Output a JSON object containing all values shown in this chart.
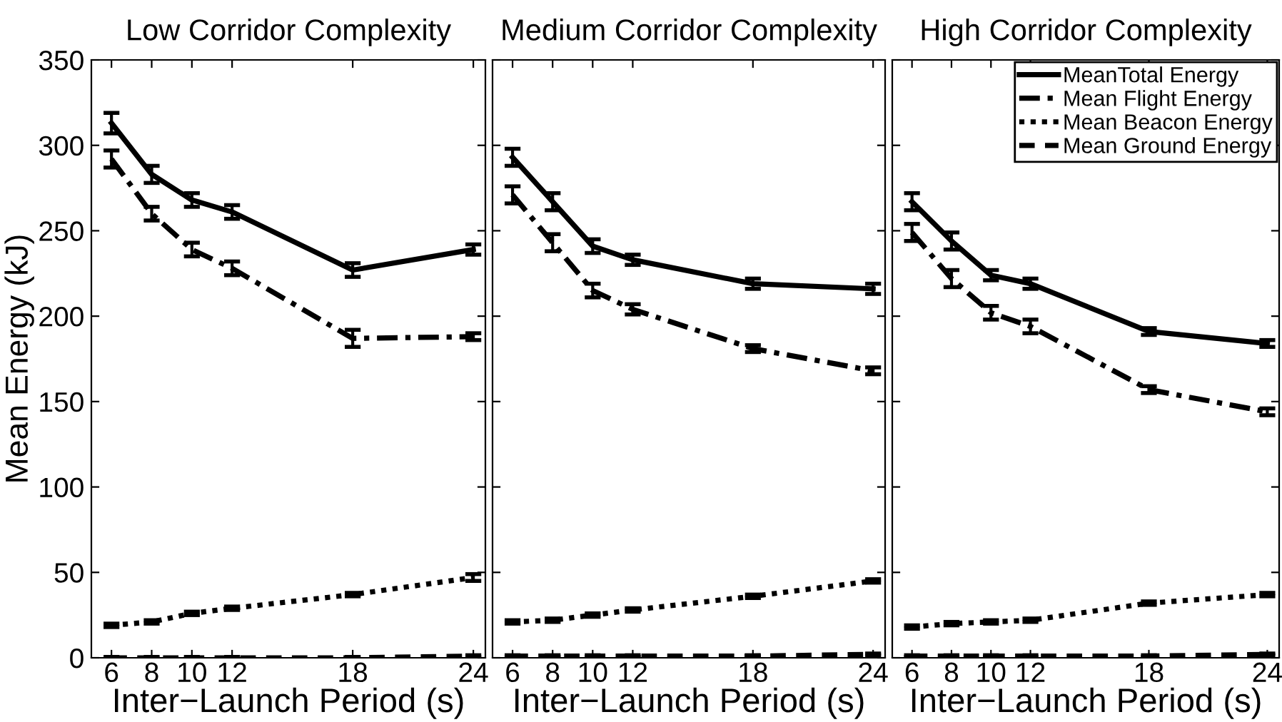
{
  "chart_data": [
    {
      "type": "line",
      "title": "Low Corridor Complexity",
      "xlabel": "Inter−Launch Period (s)",
      "ylabel": "Mean Energy (kJ)",
      "x": [
        6,
        8,
        10,
        12,
        18,
        24
      ],
      "xlim": [
        5,
        24.6
      ],
      "xticks": [
        6,
        8,
        10,
        12,
        18,
        24
      ],
      "ylim": [
        0,
        350
      ],
      "yticks": [
        0,
        50,
        100,
        150,
        200,
        250,
        300,
        350
      ],
      "marker": "none",
      "grid": false,
      "legend": false,
      "series": [
        {
          "color": "#000000",
          "line_style": "solid",
          "values": [
            313,
            283,
            268,
            261,
            227,
            239
          ],
          "errors": [
            6,
            5,
            4,
            4,
            4,
            3
          ]
        },
        {
          "color": "#000000",
          "line_style": "dashdot",
          "values": [
            292,
            260,
            239,
            228,
            187,
            188
          ],
          "errors": [
            5,
            4,
            4,
            4,
            5,
            2
          ]
        },
        {
          "color": "#000000",
          "line_style": "dotted",
          "values": [
            19,
            21,
            26,
            29,
            37,
            47
          ],
          "errors": [
            1,
            1,
            1,
            1,
            1,
            2
          ]
        },
        {
          "color": "#000000",
          "line_style": "dashed",
          "values": [
            0,
            0,
            0,
            0,
            0,
            1
          ],
          "errors": [
            0.5,
            0.5,
            0.5,
            0.5,
            0.5,
            0.5
          ]
        }
      ]
    },
    {
      "type": "line",
      "title": "Medium Corridor Complexity",
      "xlabel": "Inter−Launch Period (s)",
      "x": [
        6,
        8,
        10,
        12,
        18,
        24
      ],
      "xlim": [
        5,
        24.6
      ],
      "xticks": [
        6,
        8,
        10,
        12,
        18,
        24
      ],
      "ylim": [
        0,
        350
      ],
      "tick_labels": "x",
      "marker": "none",
      "grid": false,
      "legend": false,
      "series": [
        {
          "color": "#000000",
          "line_style": "solid",
          "values": [
            293,
            267,
            241,
            233,
            219,
            216
          ],
          "errors": [
            5,
            5,
            4,
            3,
            3,
            3
          ]
        },
        {
          "color": "#000000",
          "line_style": "dashdot",
          "values": [
            271,
            243,
            215,
            204,
            181,
            168
          ],
          "errors": [
            5,
            5,
            4,
            3,
            2,
            2
          ]
        },
        {
          "color": "#000000",
          "line_style": "dotted",
          "values": [
            21,
            22,
            25,
            28,
            36,
            45
          ],
          "errors": [
            1,
            1,
            1,
            1,
            1,
            1
          ]
        },
        {
          "color": "#000000",
          "line_style": "dashed",
          "values": [
            1,
            1,
            1,
            1,
            1,
            2
          ],
          "errors": [
            0.5,
            0.5,
            0.5,
            0.5,
            0.5,
            0.5
          ]
        }
      ]
    },
    {
      "type": "line",
      "title": "High Corridor Complexity",
      "xlabel": "Inter−Launch Period (s)",
      "x": [
        6,
        8,
        10,
        12,
        18,
        24
      ],
      "xlim": [
        5,
        24.6
      ],
      "xticks": [
        6,
        8,
        10,
        12,
        18,
        24
      ],
      "ylim": [
        0,
        350
      ],
      "tick_labels": "x",
      "marker": "none",
      "grid": false,
      "legend": "top right",
      "series": [
        {
          "name": "MeanTotal Energy",
          "color": "#000000",
          "line_style": "solid",
          "values": [
            267,
            244,
            224,
            219,
            191,
            184
          ],
          "errors": [
            5,
            5,
            3,
            3,
            2,
            2
          ]
        },
        {
          "name": "Mean Flight Energy",
          "color": "#000000",
          "line_style": "dashdot",
          "values": [
            249,
            222,
            202,
            194,
            157,
            144
          ],
          "errors": [
            5,
            5,
            4,
            4,
            2,
            2
          ]
        },
        {
          "name": "Mean Beacon Energy",
          "color": "#000000",
          "line_style": "dotted",
          "values": [
            18,
            20,
            21,
            22,
            32,
            37
          ],
          "errors": [
            1,
            1,
            1,
            1,
            1,
            1
          ]
        },
        {
          "name": "Mean Ground Energy",
          "color": "#000000",
          "line_style": "dashed",
          "values": [
            1,
            1,
            1,
            1,
            1,
            2
          ],
          "errors": [
            0.5,
            0.5,
            0.5,
            0.5,
            0.5,
            0.5
          ]
        }
      ]
    }
  ]
}
